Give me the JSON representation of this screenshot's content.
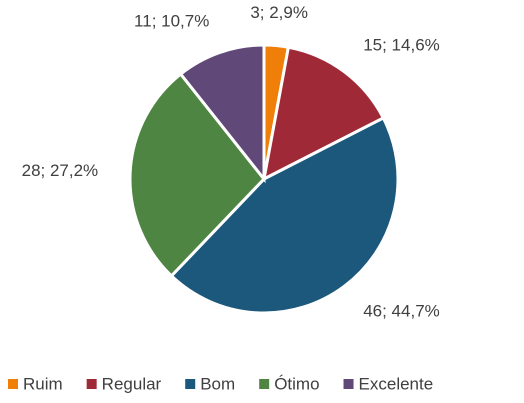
{
  "chart_data": {
    "type": "pie",
    "categories": [
      "Ruim",
      "Regular",
      "Bom",
      "Ótimo",
      "Excelente"
    ],
    "values": [
      3,
      15,
      46,
      28,
      11
    ],
    "value_labels": [
      "3; 2,9%",
      "15; 14,6%",
      "46; 44,7%",
      "28; 27,2%",
      "11; 10,7%"
    ],
    "colors": [
      "#f07f09",
      "#9f2936",
      "#1b587c",
      "#4e8542",
      "#604878"
    ],
    "legend": "bottom"
  }
}
